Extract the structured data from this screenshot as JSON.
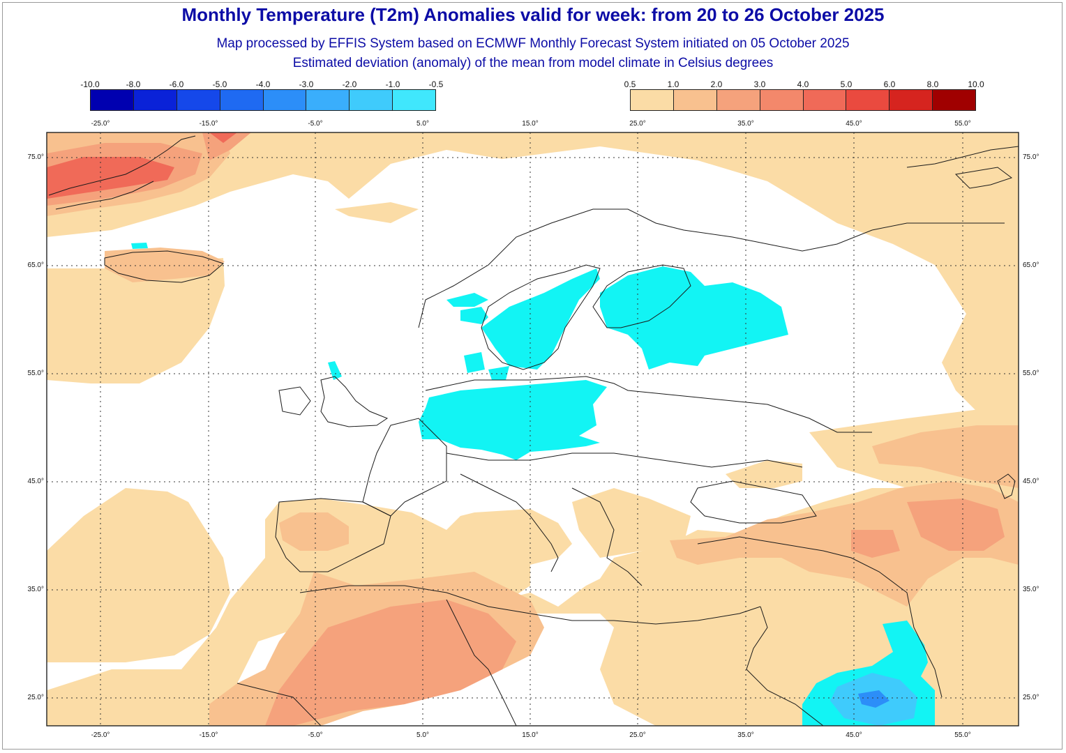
{
  "header": {
    "title": "Monthly Temperature (T2m) Anomalies valid for week: from 20 to 26 October 2025",
    "subtitle_1": "Map processed by EFFIS System based on ECMWF Monthly Forecast System initiated on 05 October 2025",
    "subtitle_2": "Estimated deviation (anomaly) of the mean from model climate in Celsius degrees"
  },
  "legend": {
    "cold": {
      "labels": [
        "-10.0",
        "-8.0",
        "-6.0",
        "-5.0",
        "-4.0",
        "-3.0",
        "-2.0",
        "-1.0",
        "-0.5"
      ],
      "colors": [
        "#0000b0",
        "#0a22d8",
        "#1548ea",
        "#1f6af2",
        "#2c8ef8",
        "#3aaefc",
        "#3fcbfc",
        "#40e7fd"
      ]
    },
    "warm": {
      "labels": [
        "0.5",
        "1.0",
        "2.0",
        "3.0",
        "4.0",
        "5.0",
        "6.0",
        "8.0",
        "10.0"
      ],
      "colors": [
        "#fbdca6",
        "#f8c18f",
        "#f5a27c",
        "#f3886b",
        "#f06a58",
        "#ea4a3f",
        "#d6241f",
        "#a00000"
      ]
    }
  },
  "map": {
    "lon_labels": [
      "-25.0°",
      "-15.0°",
      "-5.0°",
      "5.0°",
      "15.0°",
      "25.0°",
      "35.0°",
      "45.0°",
      "55.0°"
    ],
    "lat_labels": [
      "75.0°",
      "65.0°",
      "55.0°",
      "45.0°",
      "35.0°",
      "25.0°"
    ],
    "colors": {
      "warm_1": "#fbdca6",
      "warm_2": "#f8c18f",
      "warm_3": "#f5a27c",
      "warm_4": "#f06a58",
      "cold_1": "#12f4f4",
      "cold_2": "#3fcbfc",
      "cold_3": "#2c8ef8",
      "coast": "#1a1a1a",
      "grid": "#333333"
    }
  }
}
